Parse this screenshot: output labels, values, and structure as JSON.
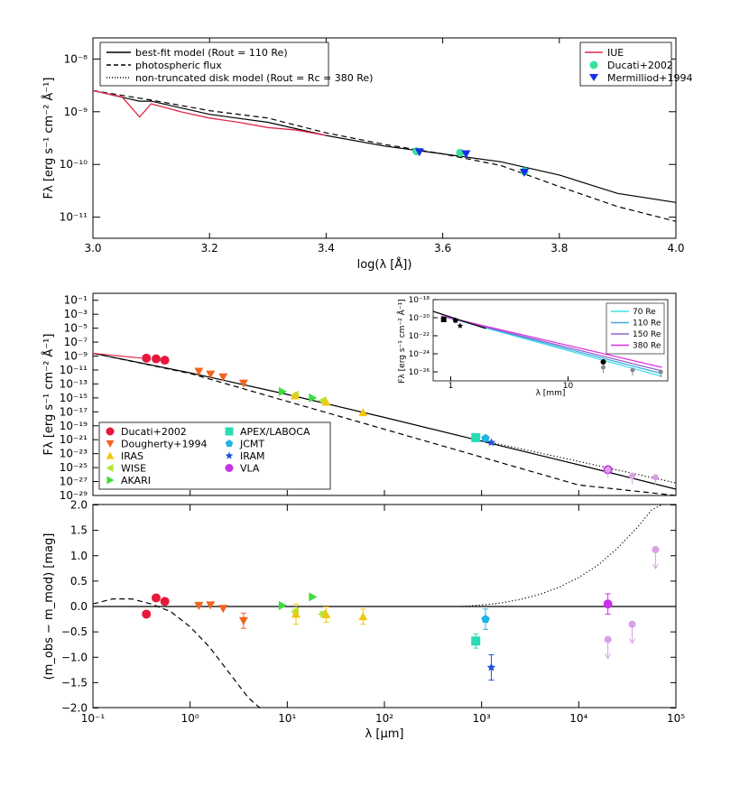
{
  "chart_data": [
    {
      "type": "line",
      "panel": "top",
      "xlabel": "log(λ [Å])",
      "ylabel": "Fλ [erg s⁻¹ cm⁻² Å⁻¹]",
      "xlim": [
        3.0,
        4.0
      ],
      "ylim_log10": [
        -11.4,
        -7.6
      ],
      "xticks": [
        "3.0",
        "3.2",
        "3.4",
        "3.6",
        "3.8",
        "4.0"
      ],
      "yticks": [
        {
          "exp": -8,
          "label": "10⁻⁸"
        },
        {
          "exp": -9,
          "label": "10⁻⁹"
        },
        {
          "exp": -10,
          "label": "10⁻¹⁰"
        },
        {
          "exp": -11,
          "label": "10⁻¹¹"
        }
      ],
      "legend_left": [
        {
          "style": "solid",
          "label": "best-fit model (Rout = 110 Re)"
        },
        {
          "style": "dashed",
          "label": "photospheric flux"
        },
        {
          "style": "dotted",
          "label": "non-truncated disk model (Rout = Rc = 380 Re)"
        }
      ],
      "legend_right": [
        {
          "marker": "line",
          "color": "#e0284a",
          "label": "IUE"
        },
        {
          "marker": "circle",
          "color": "#3de09a",
          "label": "Ducati+2002"
        },
        {
          "marker": "tri-down",
          "color": "#1530e8",
          "label": "Mermilliod+1994"
        }
      ],
      "series": [
        {
          "name": "best-fit model",
          "style": "solid",
          "x": [
            3.0,
            3.02,
            3.04,
            3.06,
            3.08,
            3.1,
            3.2,
            3.3,
            3.4,
            3.5,
            3.6,
            3.7,
            3.8,
            3.9,
            4.0
          ],
          "log10y": [
            -8.6,
            -8.65,
            -8.7,
            -8.75,
            -8.8,
            -8.8,
            -9.05,
            -9.2,
            -9.45,
            -9.65,
            -9.8,
            -9.95,
            -10.2,
            -10.55,
            -10.72
          ]
        },
        {
          "name": "photospheric flux",
          "style": "dashed",
          "x": [
            3.0,
            3.1,
            3.2,
            3.3,
            3.4,
            3.5,
            3.6,
            3.7,
            3.8,
            3.9,
            4.0
          ],
          "log10y": [
            -8.6,
            -8.78,
            -8.98,
            -9.12,
            -9.4,
            -9.62,
            -9.8,
            -10.02,
            -10.42,
            -10.8,
            -11.08
          ]
        },
        {
          "name": "IUE",
          "style": "solid",
          "x": [
            3.0,
            3.05,
            3.08,
            3.1,
            3.15,
            3.2,
            3.25,
            3.3,
            3.35,
            3.4
          ],
          "log10y": [
            -8.6,
            -8.72,
            -9.1,
            -8.85,
            -9.0,
            -9.12,
            -9.2,
            -9.3,
            -9.35,
            -9.45
          ]
        }
      ],
      "points": [
        {
          "set": "Ducati+2002",
          "x": 3.555,
          "log10y": -9.75
        },
        {
          "set": "Ducati+2002",
          "x": 3.63,
          "log10y": -9.78
        },
        {
          "set": "Ducati+2002",
          "x": 3.74,
          "log10y": -10.13
        },
        {
          "set": "Mermilliod+1994",
          "x": 3.56,
          "log10y": -9.76
        },
        {
          "set": "Mermilliod+1994",
          "x": 3.64,
          "log10y": -9.8
        },
        {
          "set": "Mermilliod+1994",
          "x": 3.74,
          "log10y": -10.15
        }
      ]
    },
    {
      "type": "scatter",
      "panel": "middle",
      "xlabel": "λ [μm]",
      "ylabel": "Fλ [erg s⁻¹ cm⁻² Å⁻¹]",
      "xlim_log10": [
        -1,
        5
      ],
      "ylim_log10": [
        -29,
        0
      ],
      "yticks": [
        {
          "exp": -1,
          "label": "10⁻¹"
        },
        {
          "exp": -3,
          "label": "10⁻³"
        },
        {
          "exp": -5,
          "label": "10⁻⁵"
        },
        {
          "exp": -7,
          "label": "10⁻⁷"
        },
        {
          "exp": -9,
          "label": "10⁻⁹"
        },
        {
          "exp": -11,
          "label": "10⁻¹¹"
        },
        {
          "exp": -13,
          "label": "10⁻¹³"
        },
        {
          "exp": -15,
          "label": "10⁻¹⁵"
        },
        {
          "exp": -17,
          "label": "10⁻¹⁷"
        },
        {
          "exp": -19,
          "label": "10⁻¹⁹"
        },
        {
          "exp": -21,
          "label": "10⁻²¹"
        },
        {
          "exp": -23,
          "label": "10⁻²³"
        },
        {
          "exp": -25,
          "label": "10⁻²⁵"
        },
        {
          "exp": -27,
          "label": "10⁻²⁷"
        },
        {
          "exp": -29,
          "label": "10⁻²⁹"
        }
      ],
      "legend": [
        {
          "marker": "circle",
          "color": "#e8193c",
          "label": "Ducati+2002"
        },
        {
          "marker": "tri-down",
          "color": "#f0641e",
          "label": "Dougherty+1994"
        },
        {
          "marker": "tri-up",
          "color": "#f0c814",
          "label": "IRAS"
        },
        {
          "marker": "tri-left",
          "color": "#b4e632",
          "label": "WISE"
        },
        {
          "marker": "tri-right",
          "color": "#3cdc3c",
          "label": "AKARI"
        },
        {
          "marker": "square",
          "color": "#28dcb4",
          "label": "APEX/LABOCA"
        },
        {
          "marker": "pentagon",
          "color": "#1eb4e6",
          "label": "JCMT"
        },
        {
          "marker": "star",
          "color": "#1e50dc",
          "label": "IRAM"
        },
        {
          "marker": "circle",
          "color": "#c832e6",
          "label": "VLA"
        }
      ],
      "series": [
        {
          "name": "best-fit model",
          "style": "solid",
          "log10x": [
            -1,
            0,
            1,
            2,
            3,
            4,
            5
          ],
          "log10y": [
            -8.6,
            -11.4,
            -14.5,
            -17.8,
            -21.2,
            -24.6,
            -28.1
          ]
        },
        {
          "name": "photospheric flux",
          "style": "dashed",
          "log10x": [
            -1,
            0,
            1,
            2,
            3,
            4,
            5
          ],
          "log10y": [
            -8.6,
            -11.5,
            -15.5,
            -19.5,
            -23.5,
            -27.5,
            -31.5
          ]
        },
        {
          "name": "non-truncated disk model",
          "style": "dotted",
          "log10x": [
            3,
            4,
            5
          ],
          "log10y": [
            -21.1,
            -24.1,
            -27.2
          ]
        }
      ],
      "points": [
        {
          "set": "Ducati+2002",
          "log10x": -0.45,
          "log10y": -9.3
        },
        {
          "set": "Ducati+2002",
          "log10x": -0.35,
          "log10y": -9.4
        },
        {
          "set": "Ducati+2002",
          "log10x": -0.26,
          "log10y": -9.6
        },
        {
          "set": "Dougherty+1994",
          "log10x": 0.09,
          "log10y": -11.2
        },
        {
          "set": "Dougherty+1994",
          "log10x": 0.21,
          "log10y": -11.6
        },
        {
          "set": "Dougherty+1994",
          "log10x": 0.34,
          "log10y": -12.0
        },
        {
          "set": "Dougherty+1994",
          "log10x": 0.55,
          "log10y": -12.9
        },
        {
          "set": "AKARI",
          "log10x": 0.95,
          "log10y": -14.1
        },
        {
          "set": "WISE",
          "log10x": 1.08,
          "log10y": -14.6
        },
        {
          "set": "IRAS",
          "log10x": 1.08,
          "log10y": -14.7
        },
        {
          "set": "AKARI",
          "log10x": 1.26,
          "log10y": -15.0
        },
        {
          "set": "WISE",
          "log10x": 1.36,
          "log10y": -15.4
        },
        {
          "set": "IRAS",
          "log10x": 1.4,
          "log10y": -15.6
        },
        {
          "set": "IRAS",
          "log10x": 1.78,
          "log10y": -17.1
        },
        {
          "set": "APEX/LABOCA",
          "log10x": 2.94,
          "log10y": -20.7
        },
        {
          "set": "JCMT",
          "log10x": 3.04,
          "log10y": -20.8
        },
        {
          "set": "IRAM",
          "log10x": 3.1,
          "log10y": -21.4
        },
        {
          "set": "VLA",
          "log10x": 4.3,
          "log10y": -25.3,
          "upper_limit": false
        },
        {
          "set": "VLA",
          "log10x": 4.3,
          "log10y": -25.3,
          "upper_limit": true
        },
        {
          "set": "VLA",
          "log10x": 4.55,
          "log10y": -26.2,
          "upper_limit": true
        },
        {
          "set": "VLA",
          "log10x": 4.79,
          "log10y": -26.4,
          "upper_limit": true
        }
      ],
      "inset": {
        "xlabel": "λ [mm]",
        "ylabel": "Fλ [erg s⁻¹ cm⁻² Å⁻¹]",
        "xticks": [
          "1",
          "10"
        ],
        "yticks": [
          {
            "exp": -18,
            "label": "10⁻¹⁸"
          },
          {
            "exp": -20,
            "label": "10⁻²⁰"
          },
          {
            "exp": -22,
            "label": "10⁻²²"
          },
          {
            "exp": -24,
            "label": "10⁻²⁴"
          },
          {
            "exp": -26,
            "label": "10⁻²⁶"
          }
        ],
        "legend": [
          {
            "color": "#3ee0e8",
            "label": "70 Re"
          },
          {
            "color": "#40a8e0",
            "label": "110 Re"
          },
          {
            "color": "#9060d0",
            "label": "150 Re"
          },
          {
            "color": "#e030e0",
            "label": "380 Re"
          }
        ],
        "lines": [
          {
            "name": "70 Re",
            "log10x": [
              -0.08,
              1.8
            ],
            "log10y": [
              -19.8,
              -26.5
            ]
          },
          {
            "name": "110 Re",
            "log10x": [
              -0.08,
              1.8
            ],
            "log10y": [
              -19.8,
              -26.2
            ]
          },
          {
            "name": "150 Re",
            "log10x": [
              -0.08,
              1.8
            ],
            "log10y": [
              -19.8,
              -25.9
            ]
          },
          {
            "name": "380 Re",
            "log10x": [
              -0.08,
              1.8
            ],
            "log10y": [
              -19.8,
              -25.5
            ]
          }
        ]
      }
    },
    {
      "type": "scatter",
      "panel": "bottom",
      "xlabel": "λ [μm]",
      "ylabel": "(m_obs − m_mod) [mag]",
      "xlim_log10": [
        -1,
        5
      ],
      "ylim": [
        -2.0,
        2.0
      ],
      "xticks": [
        "10⁻¹",
        "10⁰",
        "10¹",
        "10²",
        "10³",
        "10⁴",
        "10⁵"
      ],
      "yticks": [
        "2.0",
        "1.5",
        "1.0",
        "0.5",
        "0.0",
        "−0.5",
        "−1.0",
        "−1.5",
        "−2.0"
      ],
      "series": [
        {
          "name": "photospheric residual",
          "style": "dashed",
          "log10x": [
            -1,
            -0.8,
            -0.6,
            -0.4,
            -0.2,
            0,
            0.2,
            0.4,
            0.6,
            0.72
          ],
          "y": [
            0.05,
            0.15,
            0.15,
            0.05,
            -0.1,
            -0.4,
            -0.8,
            -1.3,
            -1.8,
            -2.0
          ]
        },
        {
          "name": "non-truncated residual",
          "style": "dotted",
          "log10x": [
            2.8,
            3.0,
            3.2,
            3.4,
            3.6,
            3.8,
            4.0,
            4.2,
            4.4,
            4.6,
            4.75,
            4.85
          ],
          "y": [
            0.0,
            0.03,
            0.07,
            0.14,
            0.24,
            0.38,
            0.57,
            0.82,
            1.15,
            1.55,
            1.9,
            2.0
          ]
        }
      ],
      "points": [
        {
          "set": "Ducati+2002",
          "log10x": -0.45,
          "y": -0.15,
          "err": 0
        },
        {
          "set": "Ducati+2002",
          "log10x": -0.35,
          "y": 0.17,
          "err": 0
        },
        {
          "set": "Ducati+2002",
          "log10x": -0.26,
          "y": 0.1,
          "err": 0
        },
        {
          "set": "Dougherty+1994",
          "log10x": 0.09,
          "y": 0.02,
          "err": 0
        },
        {
          "set": "Dougherty+1994",
          "log10x": 0.21,
          "y": 0.03,
          "err": 0
        },
        {
          "set": "Dougherty+1994",
          "log10x": 0.34,
          "y": -0.04,
          "err": 0
        },
        {
          "set": "Dougherty+1994",
          "log10x": 0.55,
          "y": -0.28,
          "err": 0.15
        },
        {
          "set": "AKARI",
          "log10x": 0.95,
          "y": 0.02,
          "err": 0
        },
        {
          "set": "WISE",
          "log10x": 1.08,
          "y": -0.1,
          "err": 0.05
        },
        {
          "set": "IRAS",
          "log10x": 1.09,
          "y": -0.15,
          "err": 0.2
        },
        {
          "set": "AKARI",
          "log10x": 1.26,
          "y": 0.19,
          "err": 0
        },
        {
          "set": "WISE",
          "log10x": 1.36,
          "y": -0.15,
          "err": 0.05
        },
        {
          "set": "IRAS",
          "log10x": 1.4,
          "y": -0.16,
          "err": 0.15
        },
        {
          "set": "IRAS",
          "log10x": 1.78,
          "y": -0.2,
          "err": 0.15
        },
        {
          "set": "APEX/LABOCA",
          "log10x": 2.94,
          "y": -0.68,
          "err": 0.14
        },
        {
          "set": "JCMT",
          "log10x": 3.04,
          "y": -0.25,
          "err": 0.2
        },
        {
          "set": "IRAM",
          "log10x": 3.1,
          "y": -1.2,
          "err": 0.25
        },
        {
          "set": "VLA",
          "log10x": 4.3,
          "y": 0.05,
          "err": 0.2,
          "upper_limit": false
        },
        {
          "set": "VLA-limit",
          "log10x": 4.3,
          "y": -0.65,
          "upper_limit": true
        },
        {
          "set": "VLA-limit",
          "log10x": 4.55,
          "y": -0.35,
          "upper_limit": true
        },
        {
          "set": "VLA-limit",
          "log10x": 4.79,
          "y": 1.12,
          "upper_limit": true
        }
      ]
    }
  ]
}
